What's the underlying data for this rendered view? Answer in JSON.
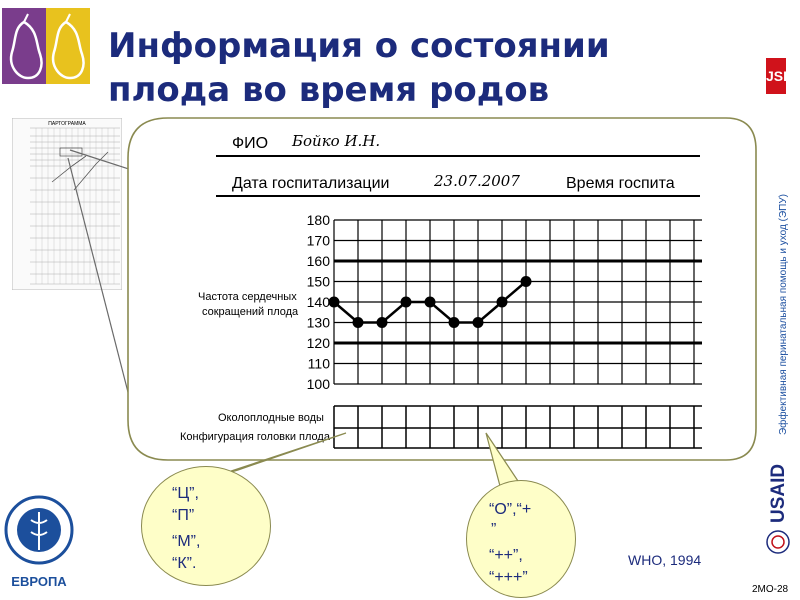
{
  "slide": {
    "title_line1": "Информация о состоянии",
    "title_line2": "плода во время родов",
    "side_vertical_text": "Эффективная перинатальная помощь и уход (ЭПУ)",
    "jsi_logo": "JSI",
    "usaid_logo": "USAID",
    "who_logo_caption": "ЕВРОПА",
    "source": "WHO, 1994",
    "slide_number": "2МО-28",
    "thumbnail_title": "ПАРТОГРАММА"
  },
  "form": {
    "fio_label": "ФИО",
    "fio_value": "Бойко И.Н.",
    "date_label": "Дата госпитализации",
    "date_value": "23.07.2007",
    "time_label": "Время госпита",
    "fhr_label_line1": "Частота сердечных",
    "fhr_label_line2": "сокращений плода",
    "amniotic_label": "Околоплодные воды",
    "moulding_label": "Конфигурация головки плода"
  },
  "chart_data": {
    "type": "line",
    "ylabel": "Частота сердечных сокращений плода",
    "yticks": [
      180,
      170,
      160,
      150,
      140,
      130,
      120,
      110,
      100
    ],
    "ylim": [
      100,
      180
    ],
    "reference_lines": [
      160,
      120
    ],
    "series": [
      {
        "values": [
          140,
          130,
          130,
          140,
          140,
          130,
          130,
          140,
          150
        ]
      }
    ],
    "grid": true
  },
  "bubbles": {
    "left_lines": [
      "“Ц”,",
      "“П”",
      "“М”,",
      "“К”."
    ],
    "right_lines": [
      "“О”,“+",
      "”",
      "“++”,",
      "“+++”"
    ]
  },
  "colors": {
    "title": "#1c2b7c",
    "bubble_fill": "#fefec8",
    "jsi_red": "#d0121b"
  }
}
